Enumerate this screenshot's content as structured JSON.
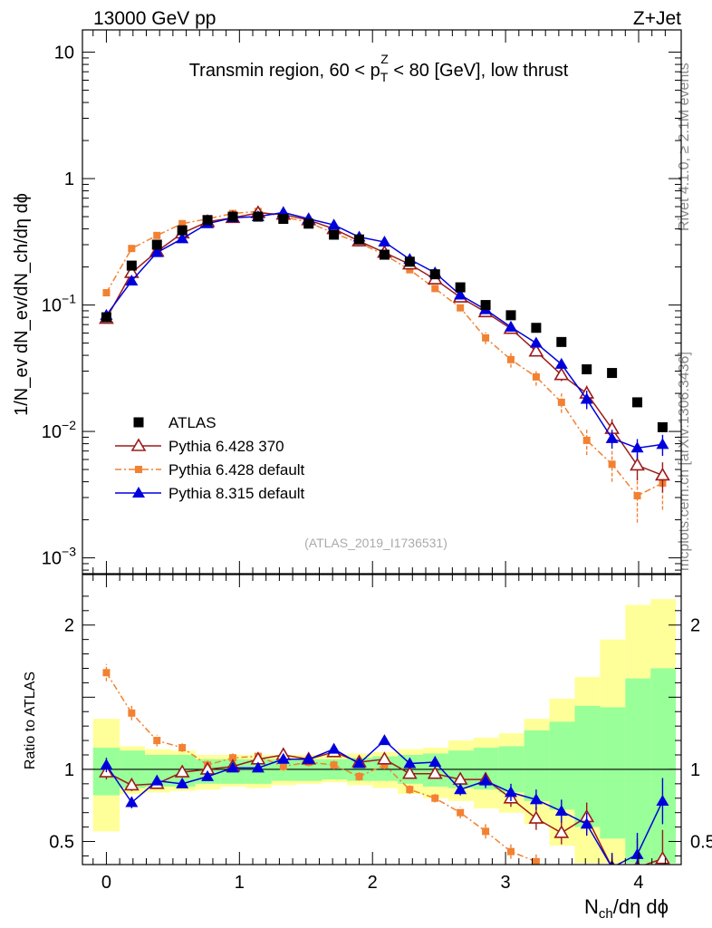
{
  "header": {
    "left_label": "13000 GeV pp",
    "right_label": "Z+Jet"
  },
  "side_labels": {
    "rivet": "Rivet 4.1.0, ≥ 2.1M events",
    "mcplots": "mcplots.cern.ch [arXiv:1306.3436]"
  },
  "watermark": "(ATLAS_2019_I1736531)",
  "chart_data": [
    {
      "type": "scatter",
      "title": "Transmin region, 60 < p_T^Z < 80 [GeV], low thrust",
      "title_parts": {
        "pre": "Transmin region, 60 < p",
        "sub": "T",
        "sup": "Z",
        "post": " < 80 [GeV], low thrust"
      },
      "ylabel": "1/N_ev dN_ev/dN_ch/dη dϕ",
      "yscale": "log",
      "ylim": [
        0.00075,
        15
      ],
      "xlim": [
        -0.18,
        4.32
      ],
      "yticks": [
        {
          "value": 10,
          "label": "10",
          "exp": ""
        },
        {
          "value": 1,
          "label": "1",
          "exp": ""
        },
        {
          "value": 0.1,
          "label": "10",
          "exp": "−1"
        },
        {
          "value": 0.01,
          "label": "10",
          "exp": "−2"
        },
        {
          "value": 0.001,
          "label": "10",
          "exp": "−3"
        }
      ],
      "legend_position": "bottom-left",
      "series": [
        {
          "name": "ATLAS",
          "color": "#000000",
          "marker": "square",
          "line": "none",
          "x": [
            0,
            0.19,
            0.38,
            0.57,
            0.76,
            0.95,
            1.14,
            1.33,
            1.52,
            1.71,
            1.9,
            2.09,
            2.28,
            2.47,
            2.66,
            2.85,
            3.04,
            3.23,
            3.42,
            3.61,
            3.8,
            3.99,
            4.18
          ],
          "y": [
            0.08,
            0.205,
            0.3,
            0.39,
            0.47,
            0.5,
            0.5,
            0.48,
            0.44,
            0.36,
            0.33,
            0.25,
            0.22,
            0.175,
            0.138,
            0.1,
            0.083,
            0.066,
            0.051,
            0.031,
            0.029,
            0.017,
            0.0108
          ]
        },
        {
          "name": "Pythia 6.428 370",
          "color": "#9b1b1b",
          "marker": "open-triangle",
          "line": "solid",
          "x": [
            0,
            0.19,
            0.38,
            0.57,
            0.76,
            0.95,
            1.14,
            1.33,
            1.52,
            1.71,
            1.9,
            2.09,
            2.28,
            2.47,
            2.66,
            2.85,
            3.04,
            3.23,
            3.42,
            3.61,
            3.8,
            3.99,
            4.18
          ],
          "y": [
            0.078,
            0.18,
            0.265,
            0.37,
            0.455,
            0.49,
            0.535,
            0.52,
            0.47,
            0.4,
            0.32,
            0.26,
            0.21,
            0.16,
            0.115,
            0.088,
            0.065,
            0.043,
            0.028,
            0.02,
            0.0105,
            0.0054,
            0.0045
          ],
          "err": [
            0.004,
            0.006,
            0.008,
            0.01,
            0.01,
            0.01,
            0.01,
            0.01,
            0.01,
            0.01,
            0.008,
            0.007,
            0.006,
            0.005,
            0.004,
            0.004,
            0.003,
            0.003,
            0.003,
            0.003,
            0.002,
            0.0013,
            0.0012
          ]
        },
        {
          "name": "Pythia 6.428 default",
          "color": "#f28132",
          "marker": "square-small",
          "line": "dashdot",
          "x": [
            0,
            0.19,
            0.38,
            0.57,
            0.76,
            0.95,
            1.14,
            1.33,
            1.52,
            1.71,
            1.9,
            2.09,
            2.28,
            2.47,
            2.66,
            2.85,
            3.04,
            3.23,
            3.42,
            3.61,
            3.8,
            3.99,
            4.18
          ],
          "y": [
            0.125,
            0.28,
            0.355,
            0.44,
            0.48,
            0.53,
            0.55,
            0.5,
            0.45,
            0.37,
            0.31,
            0.25,
            0.19,
            0.135,
            0.095,
            0.055,
            0.037,
            0.027,
            0.017,
            0.0085,
            0.0055,
            0.0031,
            0.0039
          ],
          "err": [
            0.005,
            0.008,
            0.01,
            0.01,
            0.01,
            0.01,
            0.01,
            0.01,
            0.01,
            0.01,
            0.008,
            0.007,
            0.006,
            0.005,
            0.006,
            0.006,
            0.005,
            0.004,
            0.003,
            0.002,
            0.0015,
            0.0012,
            0.0015
          ]
        },
        {
          "name": "Pythia 8.315 default",
          "color": "#0000dd",
          "marker": "filled-triangle",
          "line": "solid",
          "x": [
            0,
            0.19,
            0.38,
            0.57,
            0.76,
            0.95,
            1.14,
            1.33,
            1.52,
            1.71,
            1.9,
            2.09,
            2.28,
            2.47,
            2.66,
            2.85,
            3.04,
            3.23,
            3.42,
            3.61,
            3.8,
            3.99,
            4.18
          ],
          "y": [
            0.083,
            0.155,
            0.26,
            0.335,
            0.44,
            0.49,
            0.5,
            0.54,
            0.48,
            0.43,
            0.345,
            0.315,
            0.23,
            0.18,
            0.12,
            0.092,
            0.067,
            0.05,
            0.034,
            0.018,
            0.0088,
            0.0074,
            0.0079
          ],
          "err": [
            0.004,
            0.006,
            0.008,
            0.01,
            0.01,
            0.01,
            0.01,
            0.01,
            0.01,
            0.01,
            0.008,
            0.007,
            0.006,
            0.005,
            0.004,
            0.004,
            0.004,
            0.004,
            0.003,
            0.003,
            0.0015,
            0.0013,
            0.0015
          ]
        }
      ]
    },
    {
      "type": "scatter",
      "ylabel": "Ratio to ATLAS",
      "xlabel": "N_ch/dη dϕ",
      "xlabel_parts": {
        "pre": "N",
        "sub": "ch",
        "post": "/dη dϕ"
      },
      "ylim": [
        0.34,
        2.35
      ],
      "xlim": [
        -0.18,
        4.32
      ],
      "xticks": [
        0,
        1,
        2,
        3,
        4
      ],
      "xtick_labels": [
        "0",
        "1",
        "2",
        "3",
        "4"
      ],
      "yticks": [
        0.5,
        1,
        2
      ],
      "ytick_labels": [
        "0.5",
        "1",
        "2"
      ],
      "reference_line": 1,
      "bands": {
        "edges": [
          -0.1,
          0.1,
          0.29,
          0.48,
          0.67,
          0.86,
          1.05,
          1.24,
          1.43,
          1.62,
          1.81,
          2.0,
          2.19,
          2.38,
          2.57,
          2.76,
          2.95,
          3.14,
          3.33,
          3.52,
          3.71,
          3.9,
          4.09,
          4.28
        ],
        "green_lo": [
          0.82,
          0.87,
          0.88,
          0.88,
          0.9,
          0.9,
          0.9,
          0.92,
          0.92,
          0.93,
          0.92,
          0.92,
          0.9,
          0.88,
          0.87,
          0.86,
          0.84,
          0.78,
          0.72,
          0.6,
          0.52,
          0.35,
          0.35
        ],
        "green_hi": [
          1.15,
          1.13,
          1.1,
          1.1,
          1.07,
          1.07,
          1.07,
          1.07,
          1.07,
          1.07,
          1.08,
          1.09,
          1.1,
          1.11,
          1.13,
          1.15,
          1.16,
          1.27,
          1.33,
          1.44,
          1.43,
          1.63,
          1.7
        ],
        "yellow_lo": [
          0.57,
          0.83,
          0.84,
          0.85,
          0.86,
          0.88,
          0.87,
          0.89,
          0.9,
          0.91,
          0.89,
          0.87,
          0.83,
          0.8,
          0.78,
          0.73,
          0.7,
          0.62,
          0.47,
          0.35,
          0.35,
          0.35,
          0.35
        ],
        "yellow_hi": [
          1.35,
          1.16,
          1.14,
          1.13,
          1.1,
          1.1,
          1.1,
          1.1,
          1.1,
          1.1,
          1.11,
          1.12,
          1.14,
          1.15,
          1.2,
          1.22,
          1.25,
          1.35,
          1.49,
          1.64,
          1.9,
          2.14,
          2.18
        ]
      },
      "series": [
        {
          "name": "Pythia 6.428 370",
          "color": "#9b1b1b",
          "marker": "open-triangle",
          "line": "solid",
          "x": [
            0,
            0.19,
            0.38,
            0.57,
            0.76,
            0.95,
            1.14,
            1.33,
            1.52,
            1.71,
            1.9,
            2.09,
            2.28,
            2.47,
            2.66,
            2.85,
            3.04,
            3.23,
            3.42,
            3.61,
            3.8,
            3.99,
            4.18
          ],
          "y": [
            0.98,
            0.89,
            0.9,
            0.98,
            1.0,
            1.02,
            1.07,
            1.1,
            1.07,
            1.12,
            1.05,
            1.07,
            0.97,
            0.97,
            0.93,
            0.93,
            0.8,
            0.66,
            0.56,
            0.67,
            0.32,
            0.32,
            0.38
          ],
          "err": [
            0.05,
            0.04,
            0.03,
            0.02,
            0.02,
            0.02,
            0.02,
            0.02,
            0.02,
            0.02,
            0.02,
            0.02,
            0.03,
            0.03,
            0.04,
            0.05,
            0.06,
            0.08,
            0.08,
            0.1,
            0.1,
            0.2,
            0.2
          ]
        },
        {
          "name": "Pythia 6.428 default",
          "color": "#f28132",
          "marker": "square-small",
          "line": "dashdot",
          "x": [
            0,
            0.19,
            0.38,
            0.57,
            0.76,
            0.95,
            1.14,
            1.33,
            1.52,
            1.71,
            1.9,
            2.09,
            2.28,
            2.47,
            2.66,
            2.85,
            3.04,
            3.23
          ],
          "y": [
            1.67,
            1.39,
            1.2,
            1.15,
            1.03,
            1.08,
            1.09,
            1.02,
            1.05,
            1.03,
            0.95,
            1.03,
            0.86,
            0.8,
            0.7,
            0.57,
            0.43,
            0.36
          ],
          "err": [
            0.06,
            0.05,
            0.04,
            0.03,
            0.03,
            0.03,
            0.03,
            0.03,
            0.03,
            0.03,
            0.03,
            0.03,
            0.03,
            0.03,
            0.04,
            0.05,
            0.05,
            0.05
          ]
        },
        {
          "name": "Pythia 8.315 default",
          "color": "#0000dd",
          "marker": "filled-triangle",
          "line": "solid",
          "x": [
            0,
            0.19,
            0.38,
            0.57,
            0.76,
            0.95,
            1.14,
            1.33,
            1.52,
            1.71,
            1.9,
            2.09,
            2.28,
            2.47,
            2.66,
            2.85,
            3.04,
            3.23,
            3.42,
            3.61,
            3.8,
            3.99,
            4.18
          ],
          "y": [
            1.03,
            0.77,
            0.92,
            0.9,
            0.95,
            1.01,
            1.01,
            1.07,
            1.07,
            1.14,
            1.04,
            1.2,
            1.04,
            1.05,
            0.86,
            0.92,
            0.84,
            0.79,
            0.71,
            0.62,
            0.32,
            0.41,
            0.78
          ],
          "err": [
            0.05,
            0.04,
            0.03,
            0.03,
            0.02,
            0.02,
            0.02,
            0.02,
            0.02,
            0.02,
            0.02,
            0.03,
            0.03,
            0.04,
            0.04,
            0.05,
            0.06,
            0.07,
            0.08,
            0.08,
            0.1,
            0.15,
            0.16
          ]
        }
      ]
    }
  ]
}
